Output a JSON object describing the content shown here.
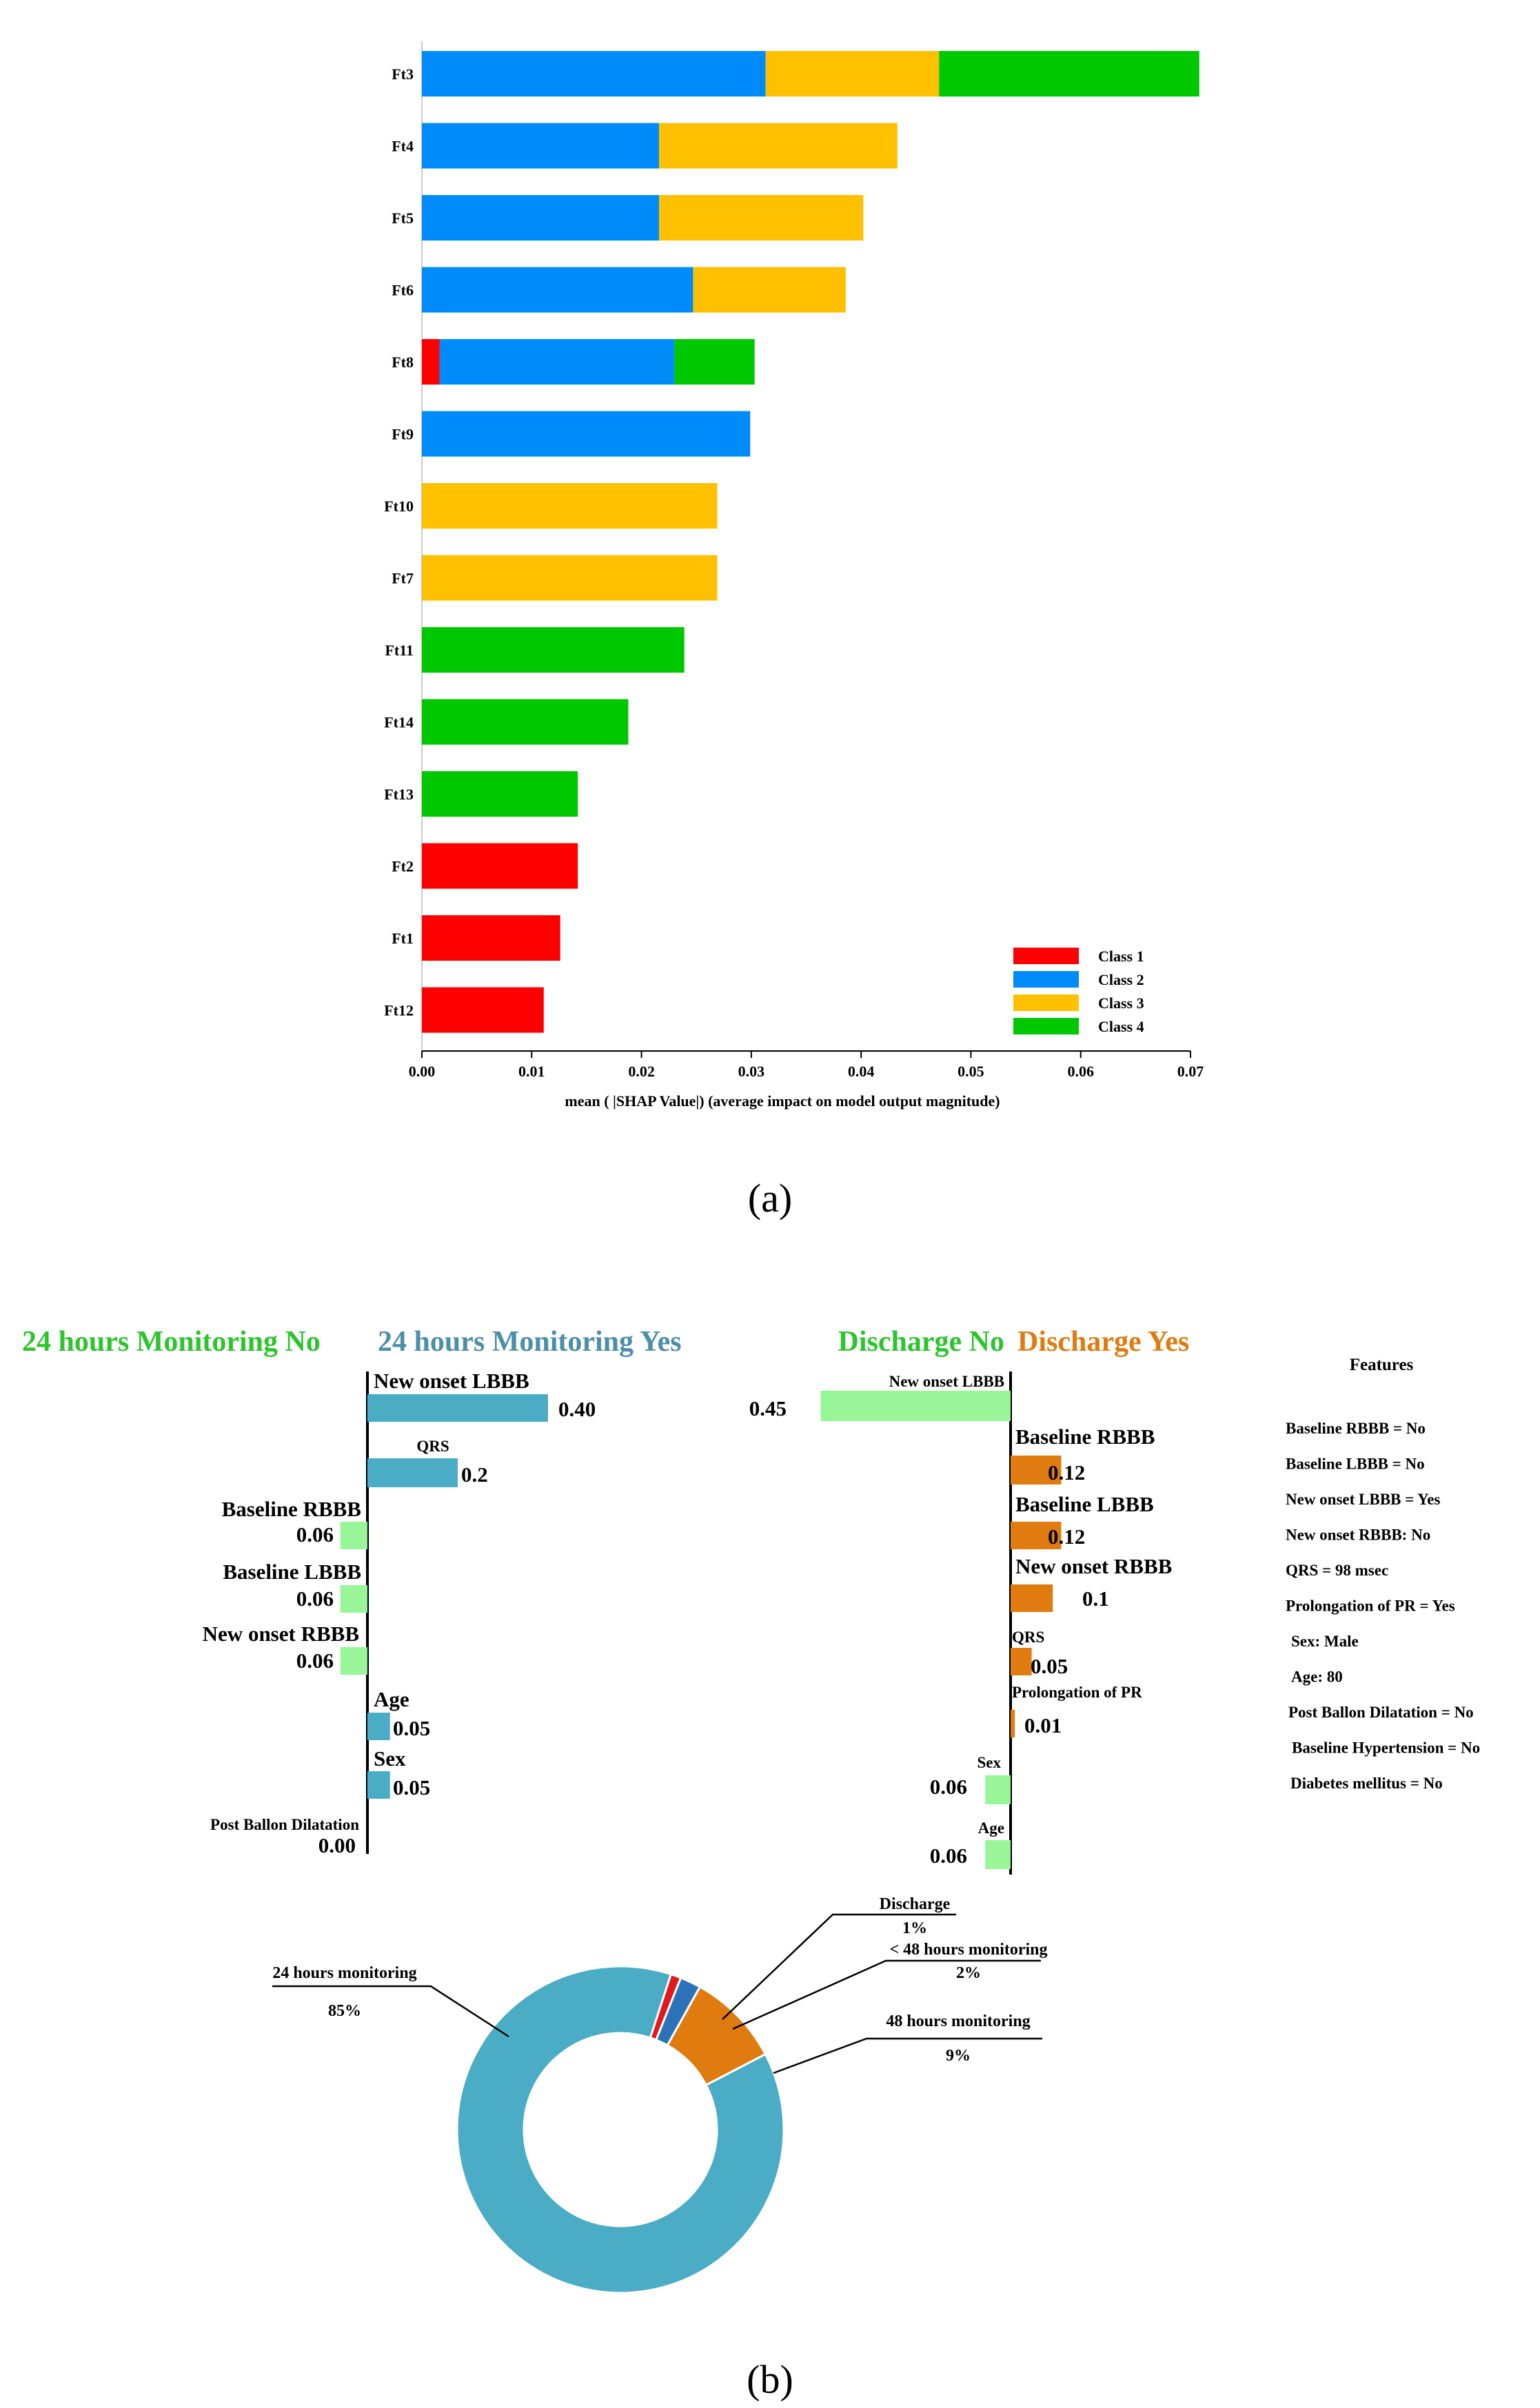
{
  "panel_labels": {
    "a": "(a)",
    "b": "(b)"
  },
  "colors": {
    "class1": "#ff0000",
    "class2": "#008bfb",
    "class3": "#ffc000",
    "class4": "#00c800",
    "positive_blue": "#4bacc6",
    "negative_green": "#98f598",
    "discharge_orange": "#e07b10",
    "green_text": "#2ec42e",
    "blue_text": "#4b8fa8",
    "orange_text": "#e07b10",
    "donut_blue": "#4bacc6",
    "donut_red": "#e31a1c",
    "donut_darkblue": "#2c72b8",
    "donut_orange": "#e07b10"
  },
  "chart_data": [
    {
      "type": "bar",
      "orientation": "horizontal",
      "stacked": true,
      "xlabel": "mean ( |SHAP Value|) (average impact on model output magnitude)",
      "xlim": [
        0,
        0.07
      ],
      "xticks": [
        "0.00",
        "0.01",
        "0.02",
        "0.03",
        "0.04",
        "0.05",
        "0.06",
        "0.07"
      ],
      "legend_position": "bottom-right",
      "series_names": [
        "Class 1",
        "Class 2",
        "Class 3",
        "Class 4"
      ],
      "categories": [
        "Ft3",
        "Ft4",
        "Ft5",
        "Ft6",
        "Ft8",
        "Ft9",
        "Ft10",
        "Ft7",
        "Ft11",
        "Ft14",
        "Ft13",
        "Ft2",
        "Ft1",
        "Ft12"
      ],
      "series": [
        {
          "name": "Class 1",
          "values": [
            0,
            0,
            0,
            0,
            0.0016,
            0,
            0,
            0,
            0,
            0,
            0,
            0.0142,
            0.0126,
            0.0111
          ]
        },
        {
          "name": "Class 2",
          "values": [
            0.0313,
            0.0216,
            0.0216,
            0.0247,
            0.0214,
            0.0299,
            0,
            0,
            0,
            0,
            0,
            0,
            0,
            0
          ]
        },
        {
          "name": "Class 3",
          "values": [
            0.0158,
            0.0217,
            0.0186,
            0.0139,
            0,
            0,
            0.0269,
            0.0269,
            0,
            0,
            0,
            0,
            0,
            0
          ]
        },
        {
          "name": "Class 4",
          "values": [
            0.0237,
            0,
            0,
            0,
            0.0073,
            0,
            0,
            0,
            0.0239,
            0.0188,
            0.0142,
            0,
            0,
            0
          ]
        }
      ]
    },
    {
      "type": "bar",
      "orientation": "horizontal",
      "title_negative": "24 hours Monitoring No",
      "title_positive": "24 hours Monitoring Yes",
      "bars": [
        {
          "label": "New onset LBBB",
          "value": 0.4,
          "value_label": "0.40"
        },
        {
          "label": "QRS",
          "value": 0.2,
          "value_label": "0.2"
        },
        {
          "label": "Baseline RBBB",
          "value": -0.06,
          "value_label": "0.06"
        },
        {
          "label": "Baseline LBBB",
          "value": -0.06,
          "value_label": "0.06"
        },
        {
          "label": "New onset RBBB",
          "value": -0.06,
          "value_label": "0.06"
        },
        {
          "label": "Age",
          "value": 0.05,
          "value_label": "0.05"
        },
        {
          "label": "Sex",
          "value": 0.05,
          "value_label": "0.05"
        },
        {
          "label": "Post Ballon Dilatation",
          "value": 0.0,
          "value_label": "0.00"
        }
      ]
    },
    {
      "type": "bar",
      "orientation": "horizontal",
      "title_negative": "Discharge No",
      "title_positive": "Discharge Yes",
      "bars": [
        {
          "label": "New onset LBBB",
          "value": -0.45,
          "value_label": "0.45"
        },
        {
          "label": "Baseline RBBB",
          "value": 0.12,
          "value_label": "0.12"
        },
        {
          "label": "Baseline LBBB",
          "value": 0.12,
          "value_label": "0.12"
        },
        {
          "label": "New onset RBBB",
          "value": 0.1,
          "value_label": "0.1"
        },
        {
          "label": "QRS",
          "value": 0.05,
          "value_label": "0.05"
        },
        {
          "label": "Prolongation of PR",
          "value": 0.01,
          "value_label": "0.01"
        },
        {
          "label": "Sex",
          "value": -0.06,
          "value_label": "0.06"
        },
        {
          "label": "Age",
          "value": -0.06,
          "value_label": "0.06"
        }
      ]
    },
    {
      "type": "pie",
      "style": "donut",
      "slices": [
        {
          "name": "24 hours monitoring",
          "value": 85,
          "label": "85%"
        },
        {
          "name": "Discharge",
          "value": 1,
          "label": "1%"
        },
        {
          "name": "< 48 hours monitoring",
          "value": 2,
          "label": "2%"
        },
        {
          "name": "48 hours monitoring",
          "value": 9,
          "label": "9%"
        }
      ]
    }
  ],
  "features_box": {
    "title": "Features",
    "items": [
      "Baseline RBBB = No",
      "Baseline LBBB = No",
      "New onset LBBB = Yes",
      "New onset RBBB: No",
      "QRS =  98 msec",
      "Prolongation of PR = Yes",
      "Sex: Male",
      "Age: 80",
      "Post Ballon Dilatation = No",
      "Baseline Hypertension = No",
      "Diabetes mellitus = No"
    ]
  }
}
